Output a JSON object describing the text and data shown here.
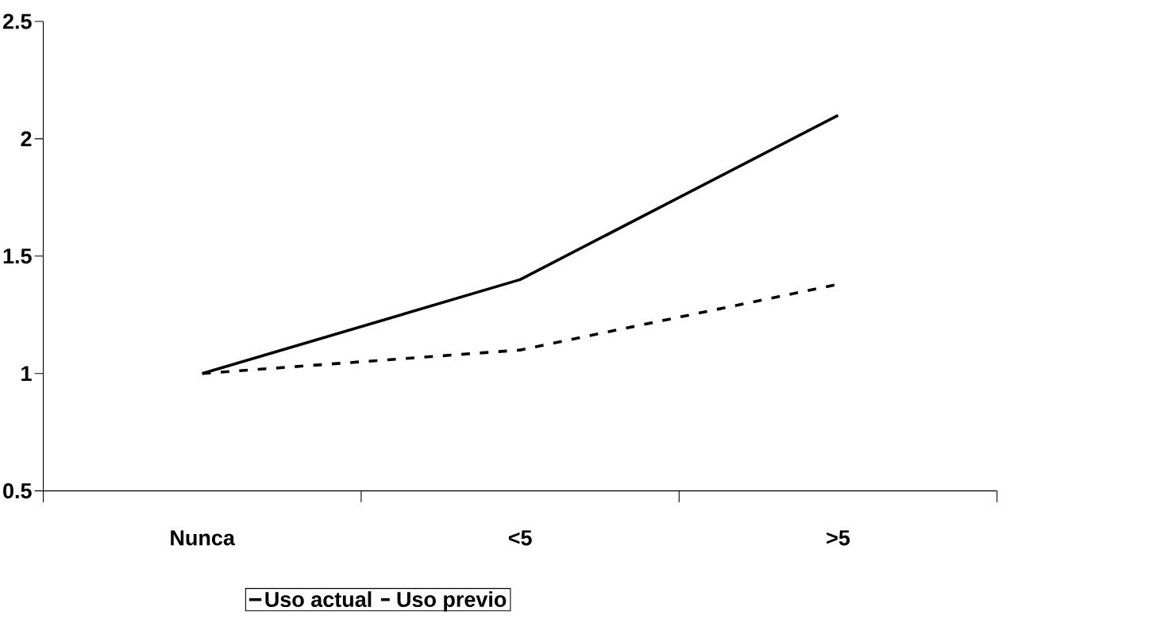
{
  "chart_data": {
    "type": "line",
    "categories": [
      "Nunca",
      "<5",
      ">5"
    ],
    "series": [
      {
        "name": "Uso actual",
        "color": "#000000",
        "line_style": "solid",
        "values": [
          1.0,
          1.4,
          2.1
        ]
      },
      {
        "name": "Uso previo",
        "color": "#000000",
        "line_style": "dashed",
        "values": [
          1.0,
          1.1,
          1.38
        ]
      }
    ],
    "ylim": [
      0.5,
      2.5
    ],
    "yticks": [
      0.5,
      1,
      1.5,
      2,
      2.5
    ],
    "legend": "bottom",
    "marker": "none",
    "grid": false
  }
}
